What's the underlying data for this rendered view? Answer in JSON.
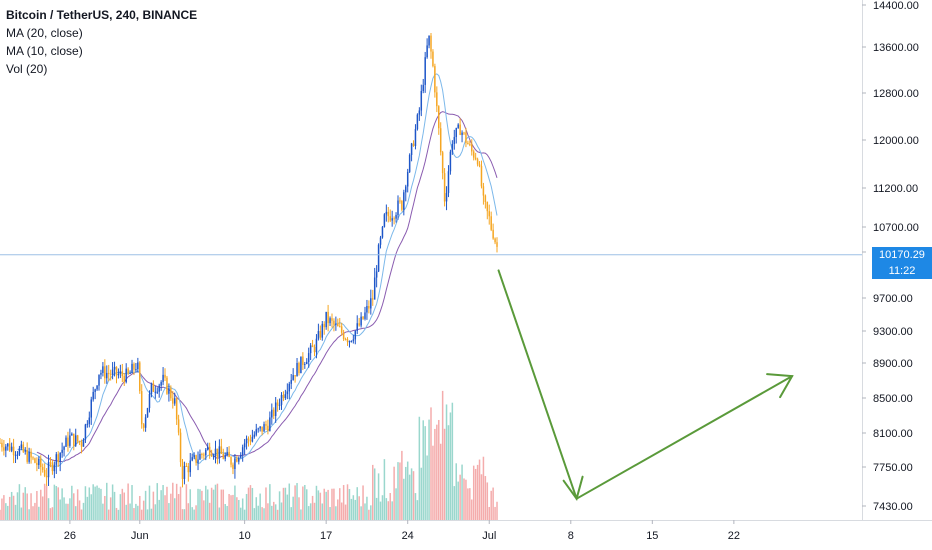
{
  "legend": {
    "title": "Bitcoin / TetherUS, 240, BINANCE",
    "ma20": "MA (20, close)",
    "ma10": "MA (10, close)",
    "vol": "Vol (20)"
  },
  "price_tags": {
    "last_price": "10170.29",
    "countdown": "11:22"
  },
  "colors": {
    "up": "#1e56c8",
    "down": "#f5a623",
    "ma20": "#8a5cb0",
    "ma10": "#7cb8ea",
    "vol_up": "#8fd3c8",
    "vol_down": "#f3a3a3",
    "projection": "#5a9a3a",
    "price_line": "#9ec0e6",
    "tag": "#1e88e5"
  },
  "chart_data": {
    "type": "candlestick",
    "symbol": "BTCUSDT",
    "interval": "240",
    "exchange": "BINANCE",
    "y_ticks": [
      7430,
      7750,
      8100,
      8500,
      8900,
      9300,
      9700,
      10200,
      10700,
      11200,
      12000,
      12800,
      13600,
      14400
    ],
    "y_tick_labels": [
      "7430.00",
      "7750.00",
      "8100.00",
      "8500.00",
      "8900.00",
      "9300.00",
      "9700.00",
      "10200.00",
      "10700.00",
      "11200.00",
      "12000.00",
      "12800.00",
      "13600.00",
      "14400.00"
    ],
    "x_tick_labels": [
      "26",
      "Jun",
      "10",
      "17",
      "24",
      "Jul",
      "8",
      "15",
      "22"
    ],
    "x_tick_days": [
      -5,
      1,
      10,
      17,
      24,
      31,
      38,
      45,
      52
    ],
    "x_range_days": [
      -11,
      63
    ],
    "price_anchors": [
      [
        -11,
        8000
      ],
      [
        -9,
        7900
      ],
      [
        -7,
        7700
      ],
      [
        -5,
        8050
      ],
      [
        -4,
        8000
      ],
      [
        -2.5,
        8800
      ],
      [
        0,
        8750
      ],
      [
        0.8,
        8900
      ],
      [
        1.2,
        8150
      ],
      [
        2,
        8600
      ],
      [
        3,
        8700
      ],
      [
        4,
        8450
      ],
      [
        4.6,
        7700
      ],
      [
        6,
        7850
      ],
      [
        7,
        7950
      ],
      [
        9,
        7800
      ],
      [
        10,
        8000
      ],
      [
        12,
        8200
      ],
      [
        14,
        8750
      ],
      [
        16,
        9100
      ],
      [
        17,
        9450
      ],
      [
        19,
        9200
      ],
      [
        20,
        9400
      ],
      [
        21,
        9700
      ],
      [
        22,
        10800
      ],
      [
        23.5,
        11000
      ],
      [
        24.5,
        12000
      ],
      [
        25,
        12500
      ],
      [
        25.8,
        13800
      ],
      [
        26.2,
        13200
      ],
      [
        26.6,
        12300
      ],
      [
        27.2,
        11000
      ],
      [
        27.8,
        12000
      ],
      [
        28.5,
        12200
      ],
      [
        29.5,
        11800
      ],
      [
        30,
        11700
      ],
      [
        30.5,
        11000
      ],
      [
        31,
        10800
      ],
      [
        31.8,
        10200
      ]
    ],
    "projection": {
      "start": [
        31.8,
        10000
      ],
      "low": [
        38.5,
        7490
      ],
      "end": [
        57,
        8750
      ]
    },
    "last_price": 10170.29
  }
}
